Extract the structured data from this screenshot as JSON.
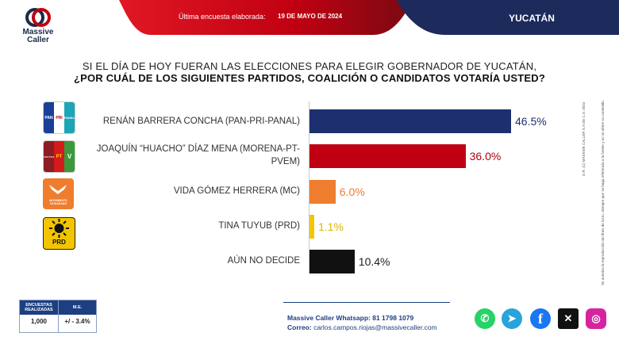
{
  "header": {
    "survey_label": "Última encuesta elaborada:",
    "survey_date": "19 DE MAYO DE 2024",
    "region": "YUCATÁN"
  },
  "brand": {
    "name_line1": "Massive",
    "name_line2": "Caller"
  },
  "question": {
    "line1": "SI EL DÍA DE HOY FUERAN LAS ELECCIONES PARA ELEGIR GOBERNADOR DE YUCATÁN,",
    "line2": "¿POR CUÁL DE LOS SIGUIENTES  PARTIDOS, COALICIÓN  O CANDIDATOS  VOTARÍA USTED?"
  },
  "chart_data": {
    "type": "bar",
    "orientation": "horizontal",
    "categories": [
      "RENÁN BARRERA CONCHA  (PAN-PRI-PANAL)",
      "JOAQUÍN “HUACHO” DÍAZ MENA  (MORENA-PT-PVEM)",
      "VIDA GÓMEZ HERRERA (MC)",
      "TINA TUYUB (PRD)",
      "AÚN NO DECIDE"
    ],
    "values": [
      46.5,
      36.0,
      6.0,
      1.1,
      10.4
    ],
    "value_labels": [
      "46.5%",
      "36.0%",
      "6.0%",
      "1.1%",
      "10.4%"
    ],
    "colors": [
      "#1d2f6e",
      "#c00012",
      "#ee7d2e",
      "#f2c500",
      "#111111"
    ],
    "label_colors": [
      "#1d2f6e",
      "#b00010",
      "#ee7d2e",
      "#e0b400",
      "#222222"
    ],
    "xlim": [
      0,
      55
    ],
    "grid": false,
    "legend": "none"
  },
  "stats_table": {
    "col1_header": "ENCUESTAS REALIZADAS",
    "col2_header": "M.E.",
    "col1_value": "1,000",
    "col2_value": "+/ - 3.4%"
  },
  "contact": {
    "whatsapp": "Massive Caller Whatsapp: 81 1798 1079",
    "email_label": "Correo:",
    "email": "carlos.campos.riojas@massivecaller.com"
  },
  "social": [
    "whatsapp-icon",
    "telegram-icon",
    "facebook-icon",
    "x-icon",
    "instagram-icon"
  ],
  "side_note": {
    "line1": "D.R. (C) MASSIVE CALLER S.A DE C.V. 2024",
    "line2": "Se autoriza la reproducción sin fines de lucro, siempre que se haga referencia a la fuente y no se altere su contenido."
  },
  "party_logos": {
    "pan_pri_panal": [
      "PAN",
      "PRI",
      "PANAL"
    ],
    "morena_pt_pvem": [
      "morena",
      "PT",
      "V"
    ],
    "mc": "MOVIMIENTO CIUDADANO",
    "prd": "PRD"
  },
  "colors": {
    "navy": "#1d2f6e",
    "red": "#c00012",
    "orange": "#ee7d2e",
    "yellow": "#f2c500"
  }
}
